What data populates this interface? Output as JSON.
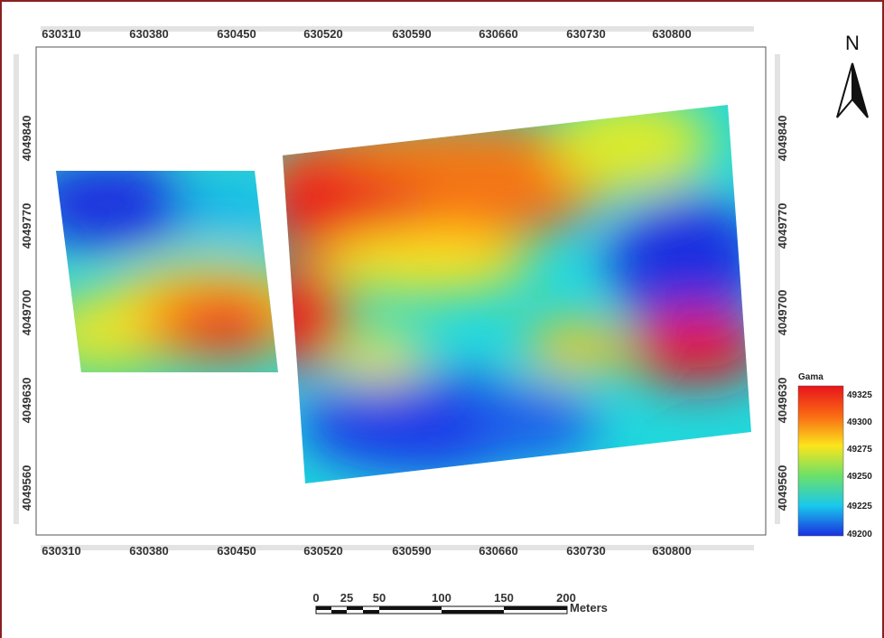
{
  "map": {
    "x_ticks": [
      "630310",
      "630380",
      "630450",
      "630520",
      "630590",
      "630660",
      "630730",
      "630800"
    ],
    "y_ticks": [
      "4049840",
      "4049770",
      "4049700",
      "4049630",
      "4049560"
    ],
    "north_label": "N"
  },
  "legend": {
    "title": "Gama",
    "values": [
      "49325",
      "49300",
      "49275",
      "49250",
      "49225",
      "49200"
    ],
    "colors": [
      "#e8141c",
      "#fa6a14",
      "#fbe51c",
      "#6be06a",
      "#18c8ec",
      "#1b2fe0"
    ]
  },
  "scale_bar": {
    "labels": [
      "0",
      "25",
      "50",
      "100",
      "150",
      "200"
    ],
    "unit": "Meters"
  },
  "colors": {
    "frame": "#8b2020",
    "axis_tick_strip": "#d9d9d9"
  }
}
